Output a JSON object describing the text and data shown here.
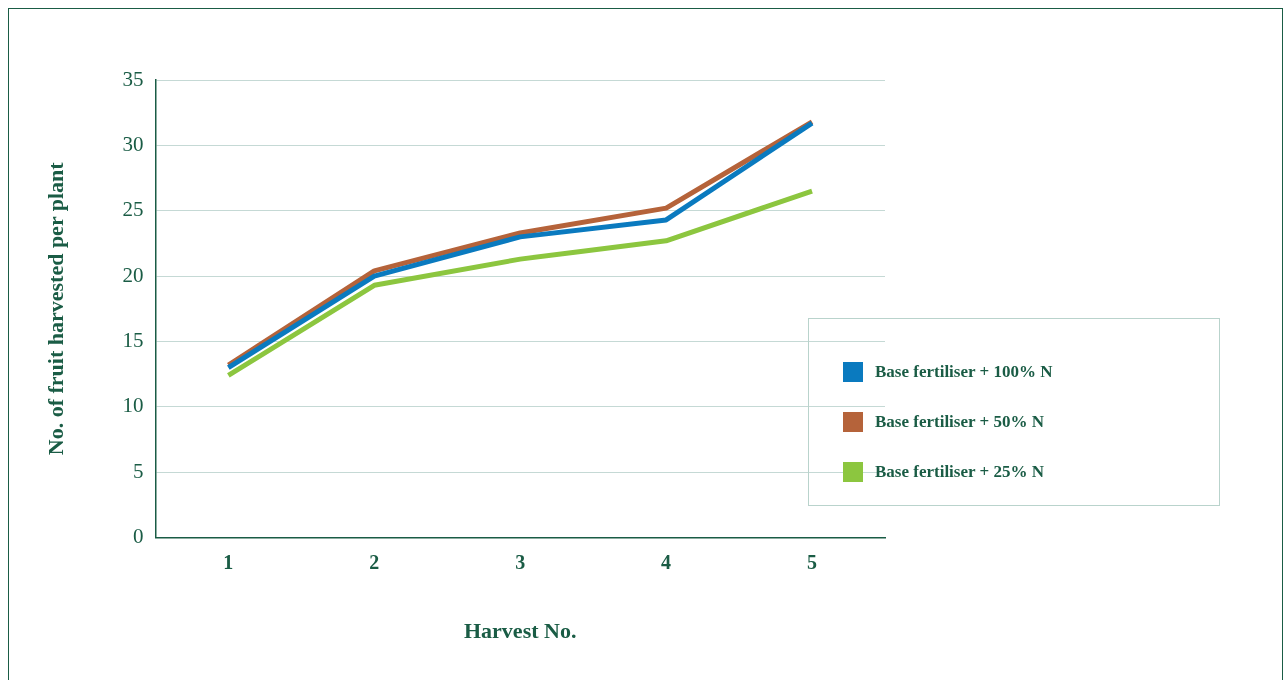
{
  "chart_data": {
    "type": "line",
    "xlabel": "Harvest No.",
    "ylabel": "No. of fruit harvested per plant",
    "categories": [
      "1",
      "2",
      "3",
      "4",
      "5"
    ],
    "series": [
      {
        "name": "Base fertiliser + 100% N",
        "color": "#0a7abf",
        "values": [
          13.0,
          20.0,
          23.0,
          24.3,
          31.7
        ]
      },
      {
        "name": "Base fertiliser + 50% N",
        "color": "#b5633a",
        "values": [
          13.2,
          20.4,
          23.3,
          25.2,
          31.8
        ]
      },
      {
        "name": "Base fertiliser + 25% N",
        "color": "#8cc63f",
        "values": [
          12.4,
          19.3,
          21.3,
          22.7,
          26.5
        ]
      }
    ],
    "ylim": [
      0,
      35
    ],
    "yticks": [
      0,
      5,
      10,
      15,
      20,
      25,
      30,
      35
    ],
    "grid": "y",
    "legend": "right",
    "marker": "none",
    "line_style": "solid"
  }
}
